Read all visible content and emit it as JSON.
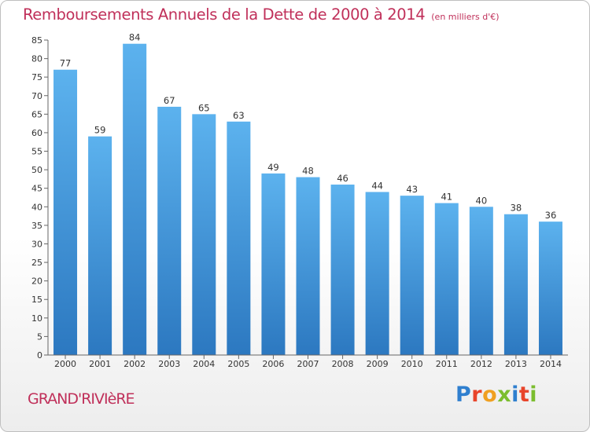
{
  "chart_data": {
    "type": "bar",
    "title": "Remboursements Annuels de la Dette de 2000 à 2014",
    "unit_note": "(en milliers d'€)",
    "categories": [
      "2000",
      "2001",
      "2002",
      "2003",
      "2004",
      "2005",
      "2006",
      "2007",
      "2008",
      "2009",
      "2010",
      "2011",
      "2012",
      "2013",
      "2014"
    ],
    "values": [
      77,
      59,
      84,
      67,
      65,
      63,
      49,
      48,
      46,
      44,
      43,
      41,
      40,
      38,
      36
    ],
    "xlabel": "",
    "ylabel": "",
    "ylim": [
      0,
      85
    ],
    "yticks": [
      0,
      5,
      10,
      15,
      20,
      25,
      30,
      35,
      40,
      45,
      50,
      55,
      60,
      65,
      70,
      75,
      80,
      85
    ],
    "grid": false,
    "bar_color": "#3d92d6"
  },
  "commune": "GRAND'RIVIèRE",
  "brand": {
    "name": "Proxiti",
    "letters": [
      {
        "char": "P",
        "color": "#2f7fcf"
      },
      {
        "char": "r",
        "color": "#e8442a"
      },
      {
        "char": "o",
        "color": "#f0a020"
      },
      {
        "char": "x",
        "color": "#7bbd2e"
      },
      {
        "char": "i",
        "color": "#2f7fcf"
      },
      {
        "char": "t",
        "color": "#e8442a"
      },
      {
        "char": "i",
        "color": "#7bbd2e"
      }
    ]
  }
}
